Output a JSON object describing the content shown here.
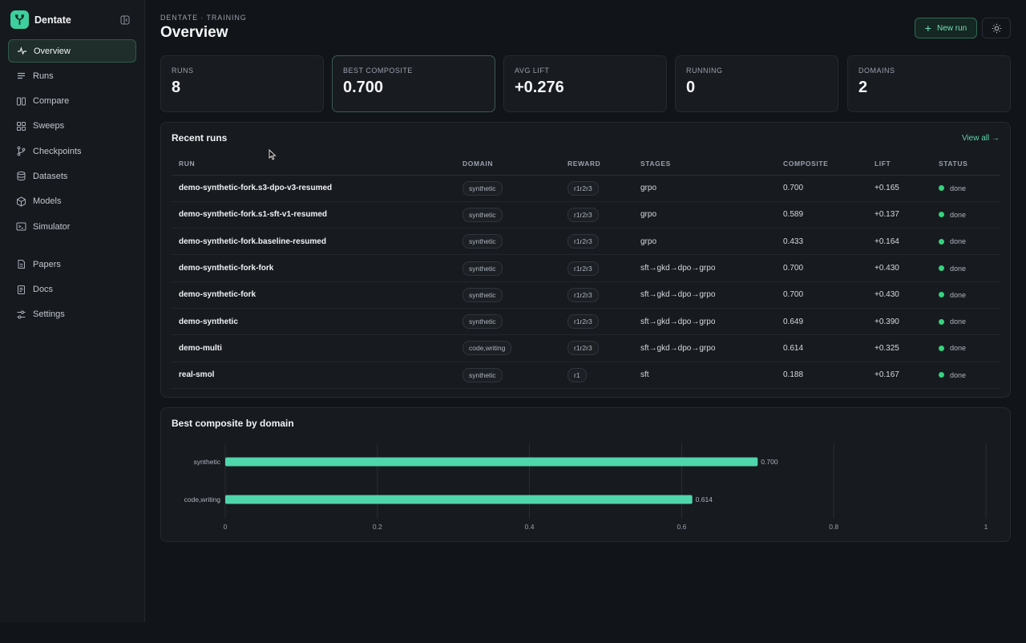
{
  "app": {
    "name": "Dentate"
  },
  "sidebar": {
    "items": [
      {
        "label": "Overview",
        "icon": "activity-icon",
        "active": true
      },
      {
        "label": "Runs",
        "icon": "list-icon"
      },
      {
        "label": "Compare",
        "icon": "columns-icon"
      },
      {
        "label": "Sweeps",
        "icon": "grid-icon"
      },
      {
        "label": "Checkpoints",
        "icon": "git-branch-icon"
      },
      {
        "label": "Datasets",
        "icon": "database-icon"
      },
      {
        "label": "Models",
        "icon": "box-icon"
      },
      {
        "label": "Simulator",
        "icon": "terminal-icon"
      }
    ],
    "secondary": [
      {
        "label": "Papers",
        "icon": "file-icon"
      },
      {
        "label": "Docs",
        "icon": "doc-icon"
      },
      {
        "label": "Settings",
        "icon": "sliders-icon"
      }
    ]
  },
  "header": {
    "breadcrumb": "DENTATE · TRAINING",
    "title": "Overview",
    "new_run_label": "New run"
  },
  "stats": [
    {
      "label": "RUNS",
      "value": "8"
    },
    {
      "label": "BEST COMPOSITE",
      "value": "0.700"
    },
    {
      "label": "AVG LIFT",
      "value": "+0.276"
    },
    {
      "label": "RUNNING",
      "value": "0"
    },
    {
      "label": "DOMAINS",
      "value": "2"
    }
  ],
  "recent_runs": {
    "title": "Recent runs",
    "view_all": "View all →",
    "columns": [
      "RUN",
      "DOMAIN",
      "REWARD",
      "STAGES",
      "COMPOSITE",
      "LIFT",
      "STATUS"
    ],
    "rows": [
      {
        "run": "demo-synthetic-fork.s3-dpo-v3-resumed",
        "domain": "synthetic",
        "reward": "r1r2r3",
        "stages": "grpo",
        "composite": "0.700",
        "lift": "+0.165",
        "status": "done"
      },
      {
        "run": "demo-synthetic-fork.s1-sft-v1-resumed",
        "domain": "synthetic",
        "reward": "r1r2r3",
        "stages": "grpo",
        "composite": "0.589",
        "lift": "+0.137",
        "status": "done"
      },
      {
        "run": "demo-synthetic-fork.baseline-resumed",
        "domain": "synthetic",
        "reward": "r1r2r3",
        "stages": "grpo",
        "composite": "0.433",
        "lift": "+0.164",
        "status": "done"
      },
      {
        "run": "demo-synthetic-fork-fork",
        "domain": "synthetic",
        "reward": "r1r2r3",
        "stages": "sft→gkd→dpo→grpo",
        "composite": "0.700",
        "lift": "+0.430",
        "status": "done"
      },
      {
        "run": "demo-synthetic-fork",
        "domain": "synthetic",
        "reward": "r1r2r3",
        "stages": "sft→gkd→dpo→grpo",
        "composite": "0.700",
        "lift": "+0.430",
        "status": "done"
      },
      {
        "run": "demo-synthetic",
        "domain": "synthetic",
        "reward": "r1r2r3",
        "stages": "sft→gkd→dpo→grpo",
        "composite": "0.649",
        "lift": "+0.390",
        "status": "done"
      },
      {
        "run": "demo-multi",
        "domain": "code,writing",
        "reward": "r1r2r3",
        "stages": "sft→gkd→dpo→grpo",
        "composite": "0.614",
        "lift": "+0.325",
        "status": "done"
      },
      {
        "run": "real-smol",
        "domain": "synthetic",
        "reward": "r1",
        "stages": "sft",
        "composite": "0.188",
        "lift": "+0.167",
        "status": "done"
      }
    ]
  },
  "chart_panel": {
    "title": "Best composite by domain"
  },
  "chart_data": {
    "type": "bar",
    "orientation": "horizontal",
    "categories": [
      "synthetic",
      "code,writing"
    ],
    "values": [
      0.7,
      0.614
    ],
    "value_labels": [
      "0.700",
      "0.614"
    ],
    "xlim": [
      0,
      1
    ],
    "xticks": [
      "0",
      "0.2",
      "0.4",
      "0.6",
      "0.8",
      "1"
    ],
    "grid": true,
    "bar_color": "#4fd6aa"
  },
  "colors": {
    "accent": "#3ecf9e",
    "status_done": "#36d27e"
  }
}
